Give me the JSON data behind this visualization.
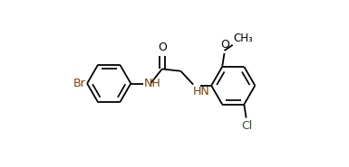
{
  "background_color": "#ffffff",
  "bond_color": "#000000",
  "label_br_color": "#7B3F00",
  "label_cl_color": "#2F4F2F",
  "label_nh_color": "#7B3F00",
  "label_o_color": "#000000",
  "figsize": [
    3.85,
    1.85
  ],
  "dpi": 100,
  "lw": 1.3,
  "dbo": 0.014,
  "r": 0.105,
  "fs": 9.0,
  "xlim": [
    0.0,
    1.0
  ],
  "ylim": [
    0.1,
    0.9
  ]
}
